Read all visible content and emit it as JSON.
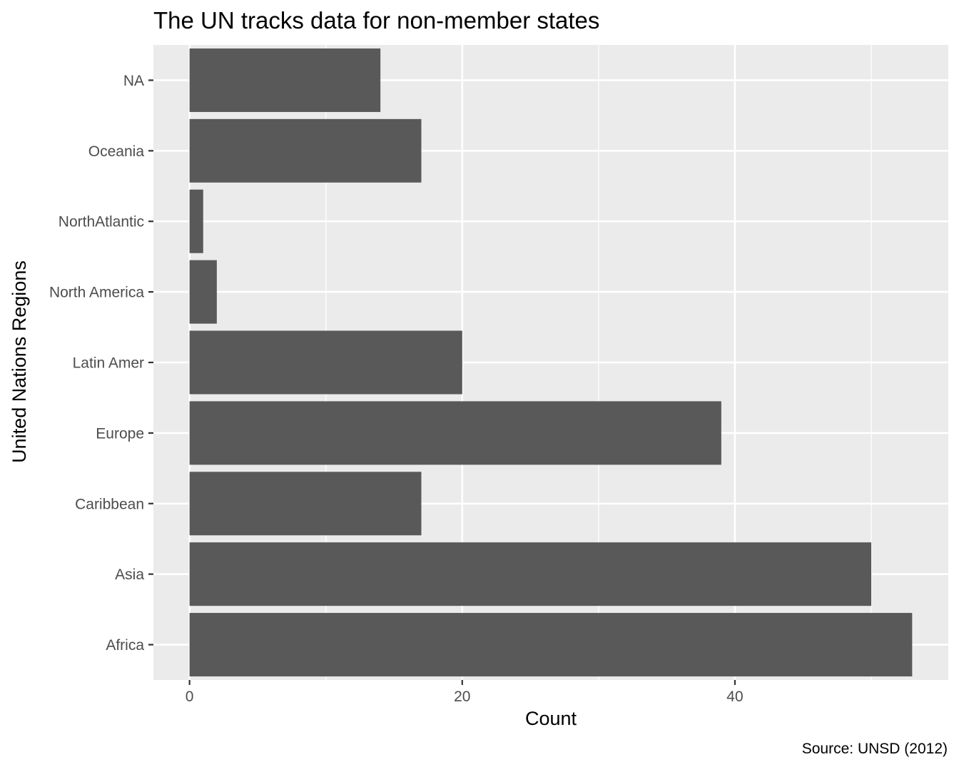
{
  "chart_data": {
    "type": "bar",
    "orientation": "horizontal",
    "title": "The UN tracks data for non-member states",
    "xlabel": "Count",
    "ylabel": "United Nations Regions",
    "caption": "Source: UNSD (2012)",
    "categories": [
      "Africa",
      "Asia",
      "Caribbean",
      "Europe",
      "Latin Amer",
      "North America",
      "NorthAtlantic",
      "Oceania",
      "NA"
    ],
    "values": [
      53,
      50,
      17,
      39,
      20,
      2,
      1,
      17,
      14
    ],
    "xlim": [
      -2.65,
      55.65
    ],
    "xticks": [
      0,
      20,
      40
    ],
    "xtick_labels": [
      "0",
      "20",
      "40"
    ],
    "grid": true,
    "colors": {
      "bar": "#595959",
      "panel": "#ebebeb",
      "grid": "#ffffff",
      "tick_text": "#4d4d4d",
      "tick_mark": "#333333"
    }
  }
}
